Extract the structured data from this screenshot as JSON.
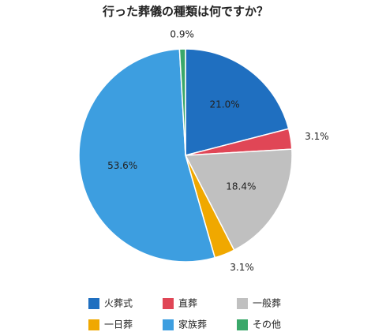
{
  "chart_data": {
    "type": "pie",
    "title": "行った葬儀の種類は何ですか？",
    "categories": [
      "火葬式",
      "直葬",
      "一般葬",
      "一日葬",
      "家族葬",
      "その他"
    ],
    "values": [
      21.0,
      3.1,
      18.4,
      3.1,
      53.6,
      0.9
    ],
    "value_labels": [
      "21.0%",
      "3.1%",
      "18.4%",
      "3.1%",
      "53.6%",
      "0.9%"
    ],
    "colors": [
      "#1f6fc0",
      "#e04656",
      "#c0c0c0",
      "#f0a800",
      "#3d9ee0",
      "#3aa86a"
    ]
  }
}
